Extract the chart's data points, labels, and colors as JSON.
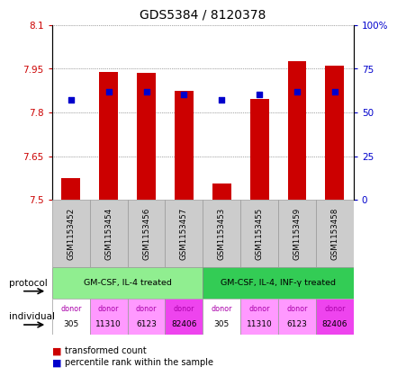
{
  "title": "GDS5384 / 8120378",
  "samples": [
    "GSM1153452",
    "GSM1153454",
    "GSM1153456",
    "GSM1153457",
    "GSM1153453",
    "GSM1153455",
    "GSM1153459",
    "GSM1153458"
  ],
  "transformed_count": [
    7.575,
    7.94,
    7.935,
    7.875,
    7.555,
    7.845,
    7.975,
    7.96
  ],
  "percentile_rank": [
    57,
    62,
    62,
    60,
    57,
    60,
    62,
    62
  ],
  "ylim_left": [
    7.5,
    8.1
  ],
  "ylim_right": [
    0,
    100
  ],
  "yticks_left": [
    7.5,
    7.65,
    7.8,
    7.95,
    8.1
  ],
  "ytick_labels_left": [
    "7.5",
    "7.65",
    "7.8",
    "7.95",
    "8.1"
  ],
  "yticks_right": [
    0,
    25,
    50,
    75,
    100
  ],
  "ytick_labels_right": [
    "0",
    "25",
    "50",
    "75",
    "100%"
  ],
  "bar_color": "#cc0000",
  "dot_color": "#0000cc",
  "bar_bottom": 7.5,
  "bar_width": 0.5,
  "protocol_groups": [
    {
      "label": "GM-CSF, IL-4 treated",
      "start": 0,
      "end": 4,
      "color": "#90ee90"
    },
    {
      "label": "GM-CSF, IL-4, INF-γ treated",
      "start": 4,
      "end": 8,
      "color": "#33cc55"
    }
  ],
  "indiv_colors": [
    "#ffffff",
    "#ff99ff",
    "#ff99ff",
    "#ee44ee",
    "#ffffff",
    "#ff99ff",
    "#ff99ff",
    "#ee44ee"
  ],
  "indiv_labels_top": [
    "donor",
    "donor",
    "donor",
    "donor",
    "donor",
    "donor",
    "donor",
    "donor"
  ],
  "indiv_labels_bot": [
    "305",
    "11310",
    "6123",
    "82406",
    "305",
    "11310",
    "6123",
    "82406"
  ],
  "sample_bg_color": "#cccccc",
  "left_axis_color": "#cc0000",
  "right_axis_color": "#0000cc",
  "grid_linestyle": "dotted",
  "background_color": "#ffffff"
}
